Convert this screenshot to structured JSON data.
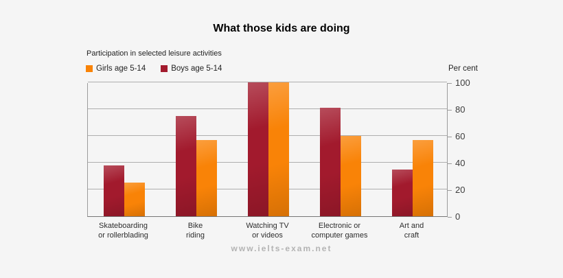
{
  "page": {
    "background_color": "#f5f5f5",
    "watermark": "www.ielts-exam.net"
  },
  "chart_data": {
    "type": "bar",
    "title": "What those kids are doing",
    "subtitle": "Participation in selected leisure activities",
    "categories": [
      "Skateboarding or rollerblading",
      "Bike riding",
      "Watching TV or videos",
      "Electronic or computer games",
      "Art and craft"
    ],
    "category_labels": [
      "Skateboarding\nor rollerblading",
      "Bike\nriding",
      "Watching TV\nor videos",
      "Electronic or\ncomputer games",
      "Art and\ncraft"
    ],
    "series": [
      {
        "key": "boys",
        "name": "Boys age 5-14",
        "color": "#A21A2D",
        "values": [
          38,
          75,
          100,
          81,
          35
        ]
      },
      {
        "key": "girls",
        "name": "Girls age 5-14",
        "color": "#F98307",
        "values": [
          25,
          57,
          100,
          60,
          57
        ]
      }
    ],
    "legend": [
      {
        "key": "girls",
        "label": "Girls age 5-14",
        "color": "#F98307"
      },
      {
        "key": "boys",
        "label": "Boys age 5-14",
        "color": "#A21A2D"
      }
    ],
    "legend_position": "top-left",
    "ylabel": "Per cent",
    "ylim": [
      0,
      100
    ],
    "yticks": [
      0,
      20,
      40,
      60,
      80,
      100
    ],
    "value_axis_side": "right",
    "grid": true
  }
}
